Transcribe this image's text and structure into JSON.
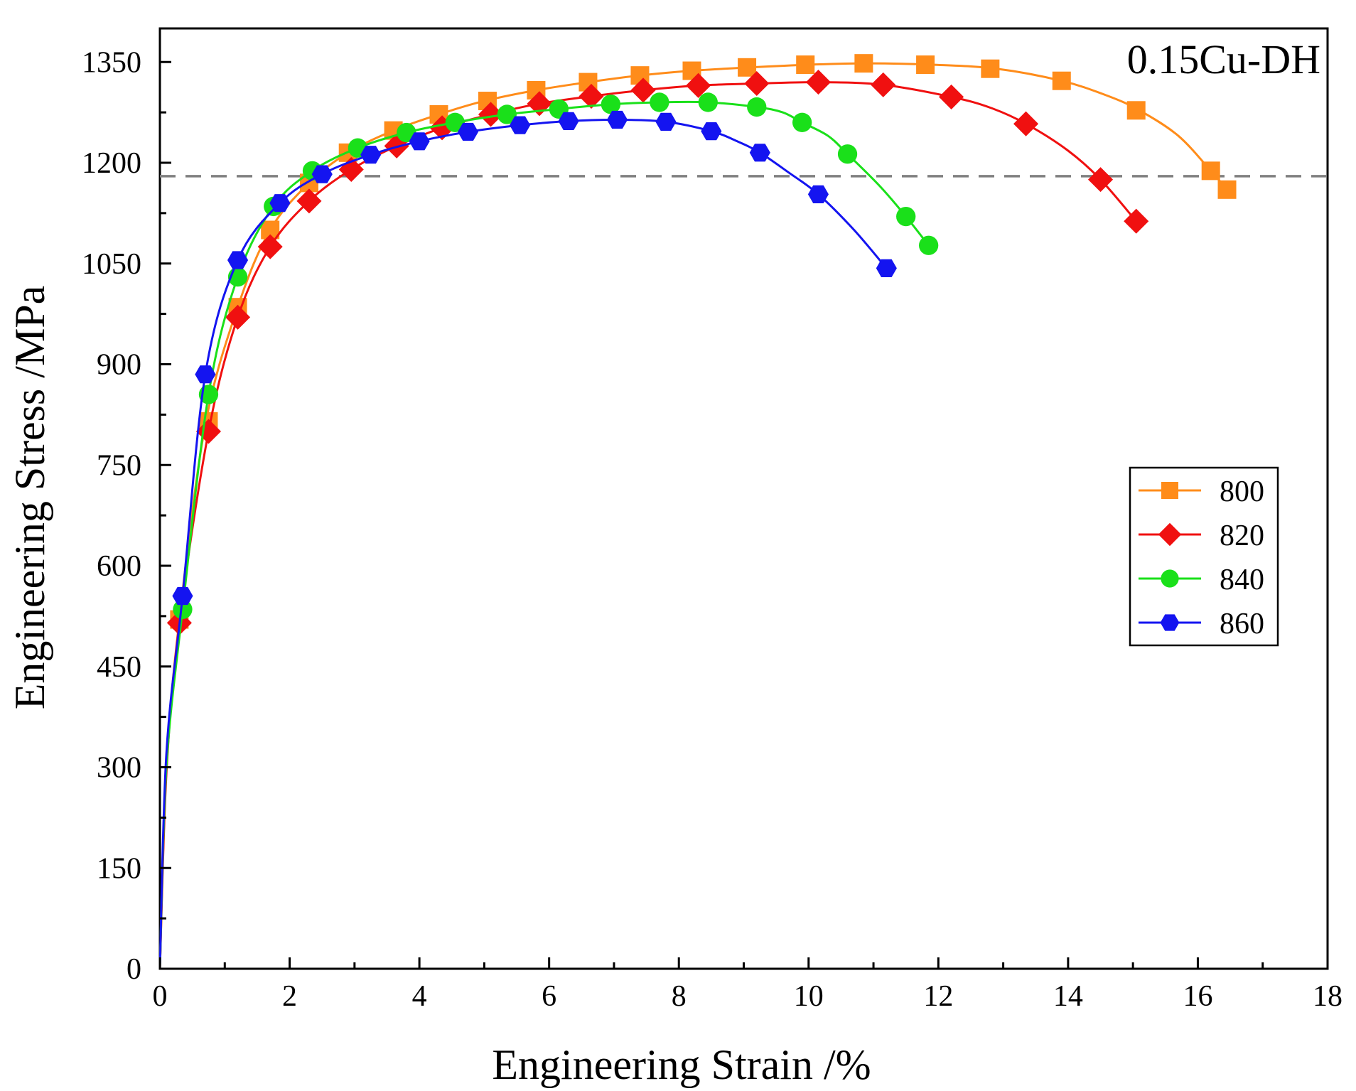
{
  "chart_data": {
    "type": "line",
    "title": "",
    "annotation": "0.15Cu-DH",
    "xlabel": "Engineering Strain /%",
    "ylabel": "Engineering Stress /MPa",
    "xlim": [
      0,
      18
    ],
    "ylim": [
      0,
      1400
    ],
    "xticks": [
      0,
      2,
      4,
      6,
      8,
      10,
      12,
      14,
      16,
      18
    ],
    "yticks": [
      0,
      150,
      300,
      450,
      600,
      750,
      900,
      1050,
      1200,
      1350
    ],
    "xtick_labels": [
      "0",
      "2",
      "4",
      "6",
      "8",
      "10",
      "12",
      "14",
      "16",
      "18"
    ],
    "ytick_labels": [
      "0",
      "150",
      "300",
      "450",
      "600",
      "750",
      "900",
      "1050",
      "1200",
      "1350"
    ],
    "grid": false,
    "legend_position": "right",
    "reference_line": {
      "y": 1180,
      "style": "dashed",
      "color": "#808080"
    },
    "series": [
      {
        "name": "800",
        "color": "#FF8C1A",
        "marker": "square",
        "curve": [
          [
            0,
            0
          ],
          [
            0.1,
            300
          ],
          [
            0.3,
            520
          ],
          [
            0.7,
            810
          ],
          [
            1.2,
            985
          ],
          [
            1.7,
            1100
          ],
          [
            2.3,
            1170
          ],
          [
            2.9,
            1215
          ],
          [
            3.6,
            1248
          ],
          [
            4.3,
            1272
          ],
          [
            5.0,
            1292
          ],
          [
            5.8,
            1308
          ],
          [
            6.6,
            1320
          ],
          [
            7.4,
            1330
          ],
          [
            8.2,
            1337
          ],
          [
            9.1,
            1342
          ],
          [
            10.0,
            1346
          ],
          [
            10.9,
            1348
          ],
          [
            11.9,
            1346
          ],
          [
            12.9,
            1340
          ],
          [
            13.9,
            1322
          ],
          [
            14.6,
            1300
          ],
          [
            15.1,
            1278
          ],
          [
            15.7,
            1240
          ],
          [
            16.2,
            1188
          ],
          [
            16.45,
            1160
          ]
        ],
        "markers": [
          [
            0.3,
            520
          ],
          [
            0.75,
            815
          ],
          [
            1.2,
            985
          ],
          [
            1.7,
            1100
          ],
          [
            2.3,
            1170
          ],
          [
            2.9,
            1215
          ],
          [
            3.6,
            1248
          ],
          [
            4.3,
            1272
          ],
          [
            5.05,
            1292
          ],
          [
            5.8,
            1308
          ],
          [
            6.6,
            1320
          ],
          [
            7.4,
            1330
          ],
          [
            8.2,
            1337
          ],
          [
            9.05,
            1342
          ],
          [
            9.95,
            1346
          ],
          [
            10.85,
            1348
          ],
          [
            11.8,
            1346
          ],
          [
            12.8,
            1340
          ],
          [
            13.9,
            1322
          ],
          [
            15.05,
            1278
          ],
          [
            16.2,
            1188
          ],
          [
            16.45,
            1160
          ]
        ]
      },
      {
        "name": "820",
        "color": "#F01010",
        "marker": "diamond",
        "curve": [
          [
            0,
            0
          ],
          [
            0.1,
            290
          ],
          [
            0.3,
            515
          ],
          [
            0.75,
            800
          ],
          [
            1.2,
            970
          ],
          [
            1.7,
            1075
          ],
          [
            2.3,
            1143
          ],
          [
            2.95,
            1190
          ],
          [
            3.65,
            1225
          ],
          [
            4.35,
            1252
          ],
          [
            5.1,
            1272
          ],
          [
            5.85,
            1288
          ],
          [
            6.65,
            1299
          ],
          [
            7.45,
            1308
          ],
          [
            8.3,
            1315
          ],
          [
            9.2,
            1318
          ],
          [
            10.15,
            1320
          ],
          [
            11.15,
            1316
          ],
          [
            12.2,
            1298
          ],
          [
            12.8,
            1282
          ],
          [
            13.35,
            1258
          ],
          [
            14.0,
            1218
          ],
          [
            14.5,
            1175
          ],
          [
            15.05,
            1113
          ]
        ],
        "markers": [
          [
            0.3,
            515
          ],
          [
            0.75,
            800
          ],
          [
            1.2,
            970
          ],
          [
            1.7,
            1075
          ],
          [
            2.3,
            1143
          ],
          [
            2.95,
            1190
          ],
          [
            3.65,
            1225
          ],
          [
            4.35,
            1252
          ],
          [
            5.1,
            1272
          ],
          [
            5.85,
            1288
          ],
          [
            6.65,
            1299
          ],
          [
            7.45,
            1308
          ],
          [
            8.3,
            1315
          ],
          [
            9.2,
            1318
          ],
          [
            10.15,
            1320
          ],
          [
            11.15,
            1316
          ],
          [
            12.2,
            1298
          ],
          [
            13.35,
            1258
          ],
          [
            14.5,
            1175
          ],
          [
            15.05,
            1113
          ]
        ]
      },
      {
        "name": "840",
        "color": "#1AE01A",
        "marker": "circle",
        "curve": [
          [
            0,
            0
          ],
          [
            0.1,
            300
          ],
          [
            0.35,
            535
          ],
          [
            0.75,
            855
          ],
          [
            1.2,
            1030
          ],
          [
            1.75,
            1135
          ],
          [
            2.35,
            1188
          ],
          [
            3.05,
            1222
          ],
          [
            3.8,
            1245
          ],
          [
            4.55,
            1260
          ],
          [
            5.35,
            1272
          ],
          [
            6.15,
            1280
          ],
          [
            6.95,
            1287
          ],
          [
            7.7,
            1290
          ],
          [
            8.45,
            1290
          ],
          [
            9.2,
            1283
          ],
          [
            9.6,
            1275
          ],
          [
            9.9,
            1260
          ],
          [
            10.3,
            1240
          ],
          [
            10.6,
            1213
          ],
          [
            11.1,
            1165
          ],
          [
            11.5,
            1120
          ],
          [
            11.85,
            1077
          ]
        ],
        "markers": [
          [
            0.35,
            535
          ],
          [
            0.75,
            855
          ],
          [
            1.2,
            1030
          ],
          [
            1.75,
            1135
          ],
          [
            2.35,
            1188
          ],
          [
            3.05,
            1222
          ],
          [
            3.8,
            1245
          ],
          [
            4.55,
            1260
          ],
          [
            5.35,
            1272
          ],
          [
            6.15,
            1280
          ],
          [
            6.95,
            1287
          ],
          [
            7.7,
            1290
          ],
          [
            8.45,
            1290
          ],
          [
            9.2,
            1283
          ],
          [
            9.9,
            1260
          ],
          [
            10.6,
            1213
          ],
          [
            11.5,
            1120
          ],
          [
            11.85,
            1077
          ]
        ]
      },
      {
        "name": "860",
        "color": "#1414F0",
        "marker": "hexagon",
        "curve": [
          [
            0,
            0
          ],
          [
            0.1,
            320
          ],
          [
            0.35,
            555
          ],
          [
            0.7,
            885
          ],
          [
            1.2,
            1055
          ],
          [
            1.85,
            1140
          ],
          [
            2.5,
            1183
          ],
          [
            3.25,
            1212
          ],
          [
            4.0,
            1232
          ],
          [
            4.75,
            1246
          ],
          [
            5.55,
            1256
          ],
          [
            6.3,
            1262
          ],
          [
            7.05,
            1264
          ],
          [
            7.8,
            1261
          ],
          [
            8.5,
            1247
          ],
          [
            8.9,
            1232
          ],
          [
            9.25,
            1215
          ],
          [
            9.7,
            1185
          ],
          [
            10.15,
            1153
          ],
          [
            10.7,
            1100
          ],
          [
            11.2,
            1043
          ]
        ],
        "markers": [
          [
            0.35,
            555
          ],
          [
            0.7,
            885
          ],
          [
            1.2,
            1055
          ],
          [
            1.85,
            1140
          ],
          [
            2.5,
            1183
          ],
          [
            3.25,
            1212
          ],
          [
            4.0,
            1232
          ],
          [
            4.75,
            1246
          ],
          [
            5.55,
            1256
          ],
          [
            6.3,
            1262
          ],
          [
            7.05,
            1264
          ],
          [
            7.8,
            1261
          ],
          [
            8.5,
            1247
          ],
          [
            9.25,
            1215
          ],
          [
            10.15,
            1153
          ],
          [
            11.2,
            1043
          ]
        ]
      }
    ]
  }
}
